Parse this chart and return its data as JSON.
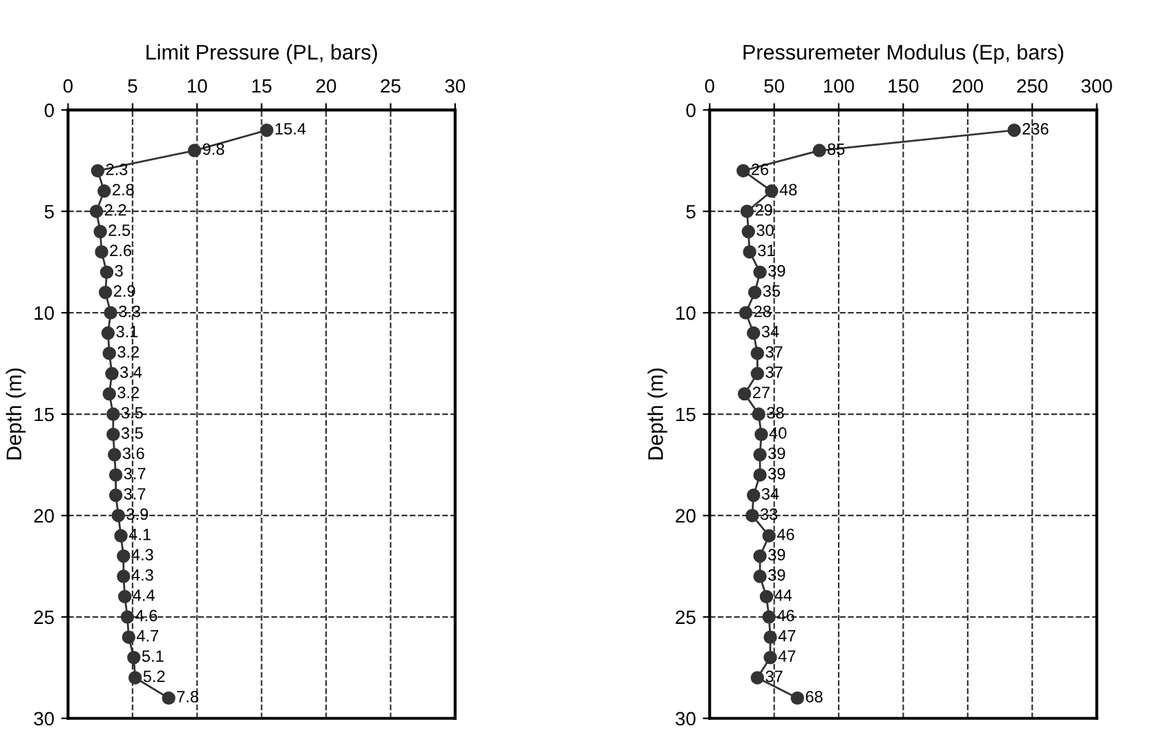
{
  "chart_data": [
    {
      "type": "line",
      "xlabel": "Limit Pressure (PL, bars)",
      "ylabel": "Depth (m)",
      "orientation": "horizontal",
      "xlim": [
        0,
        30
      ],
      "xticks": [
        0,
        5,
        10,
        15,
        20,
        25,
        30
      ],
      "ylim": [
        30,
        0
      ],
      "yticks": [
        0,
        5,
        10,
        15,
        20,
        25,
        30
      ],
      "grid": true,
      "marker": "circle",
      "line_style": "solid",
      "series": [
        {
          "color": "#333333",
          "values": [
            15.4,
            9.8,
            2.3,
            2.8,
            2.2,
            2.5,
            2.6,
            3,
            2.9,
            3.3,
            3.1,
            3.2,
            3.4,
            3.2,
            3.5,
            3.5,
            3.6,
            3.7,
            3.7,
            3.9,
            4.1,
            4.3,
            4.3,
            4.4,
            4.6,
            4.7,
            5.1,
            5.2,
            7.8
          ],
          "x": [
            1,
            2,
            3,
            4,
            5,
            6,
            7,
            8,
            9,
            10,
            11,
            12,
            13,
            14,
            15,
            16,
            17,
            18,
            19,
            20,
            21,
            22,
            23,
            24,
            25,
            26,
            27,
            28,
            29
          ],
          "value_labels": [
            "15.4",
            "9.8",
            "2.3",
            "2.8",
            "2.2",
            "2.5",
            "2.6",
            "3",
            "2.9",
            "3.3",
            "3.1",
            "3.2",
            "3.4",
            "3.2",
            "3.5",
            "3.5",
            "3.6",
            "3.7",
            "3.7",
            "3.9",
            "4.1",
            "4.3",
            "4.3",
            "4.4",
            "4.6",
            "4.7",
            "5.1",
            "5.2",
            "7.8"
          ]
        }
      ]
    },
    {
      "type": "line",
      "xlabel": "Pressuremeter Modulus (Ep, bars)",
      "ylabel": "Depth (m)",
      "orientation": "horizontal",
      "xlim": [
        0,
        300
      ],
      "xticks": [
        0,
        50,
        100,
        150,
        200,
        250,
        300
      ],
      "ylim": [
        30,
        0
      ],
      "yticks": [
        0,
        5,
        10,
        15,
        20,
        25,
        30
      ],
      "grid": true,
      "marker": "circle",
      "line_style": "solid",
      "series": [
        {
          "color": "#333333",
          "values": [
            236,
            85,
            26,
            48,
            29,
            30,
            31,
            39,
            35,
            28,
            34,
            37,
            37,
            27,
            38,
            40,
            39,
            39,
            34,
            33,
            46,
            39,
            39,
            44,
            46,
            47,
            47,
            37,
            68
          ],
          "x": [
            1,
            2,
            3,
            4,
            5,
            6,
            7,
            8,
            9,
            10,
            11,
            12,
            13,
            14,
            15,
            16,
            17,
            18,
            19,
            20,
            21,
            22,
            23,
            24,
            25,
            26,
            27,
            28,
            29
          ],
          "value_labels": [
            "236",
            "85",
            "26",
            "48",
            "29",
            "30",
            "31",
            "39",
            "35",
            "28",
            "34",
            "37",
            "37",
            "27",
            "38",
            "40",
            "39",
            "39",
            "34",
            "33",
            "46",
            "39",
            "39",
            "44",
            "46",
            "47",
            "47",
            "37",
            "68"
          ]
        }
      ]
    }
  ]
}
